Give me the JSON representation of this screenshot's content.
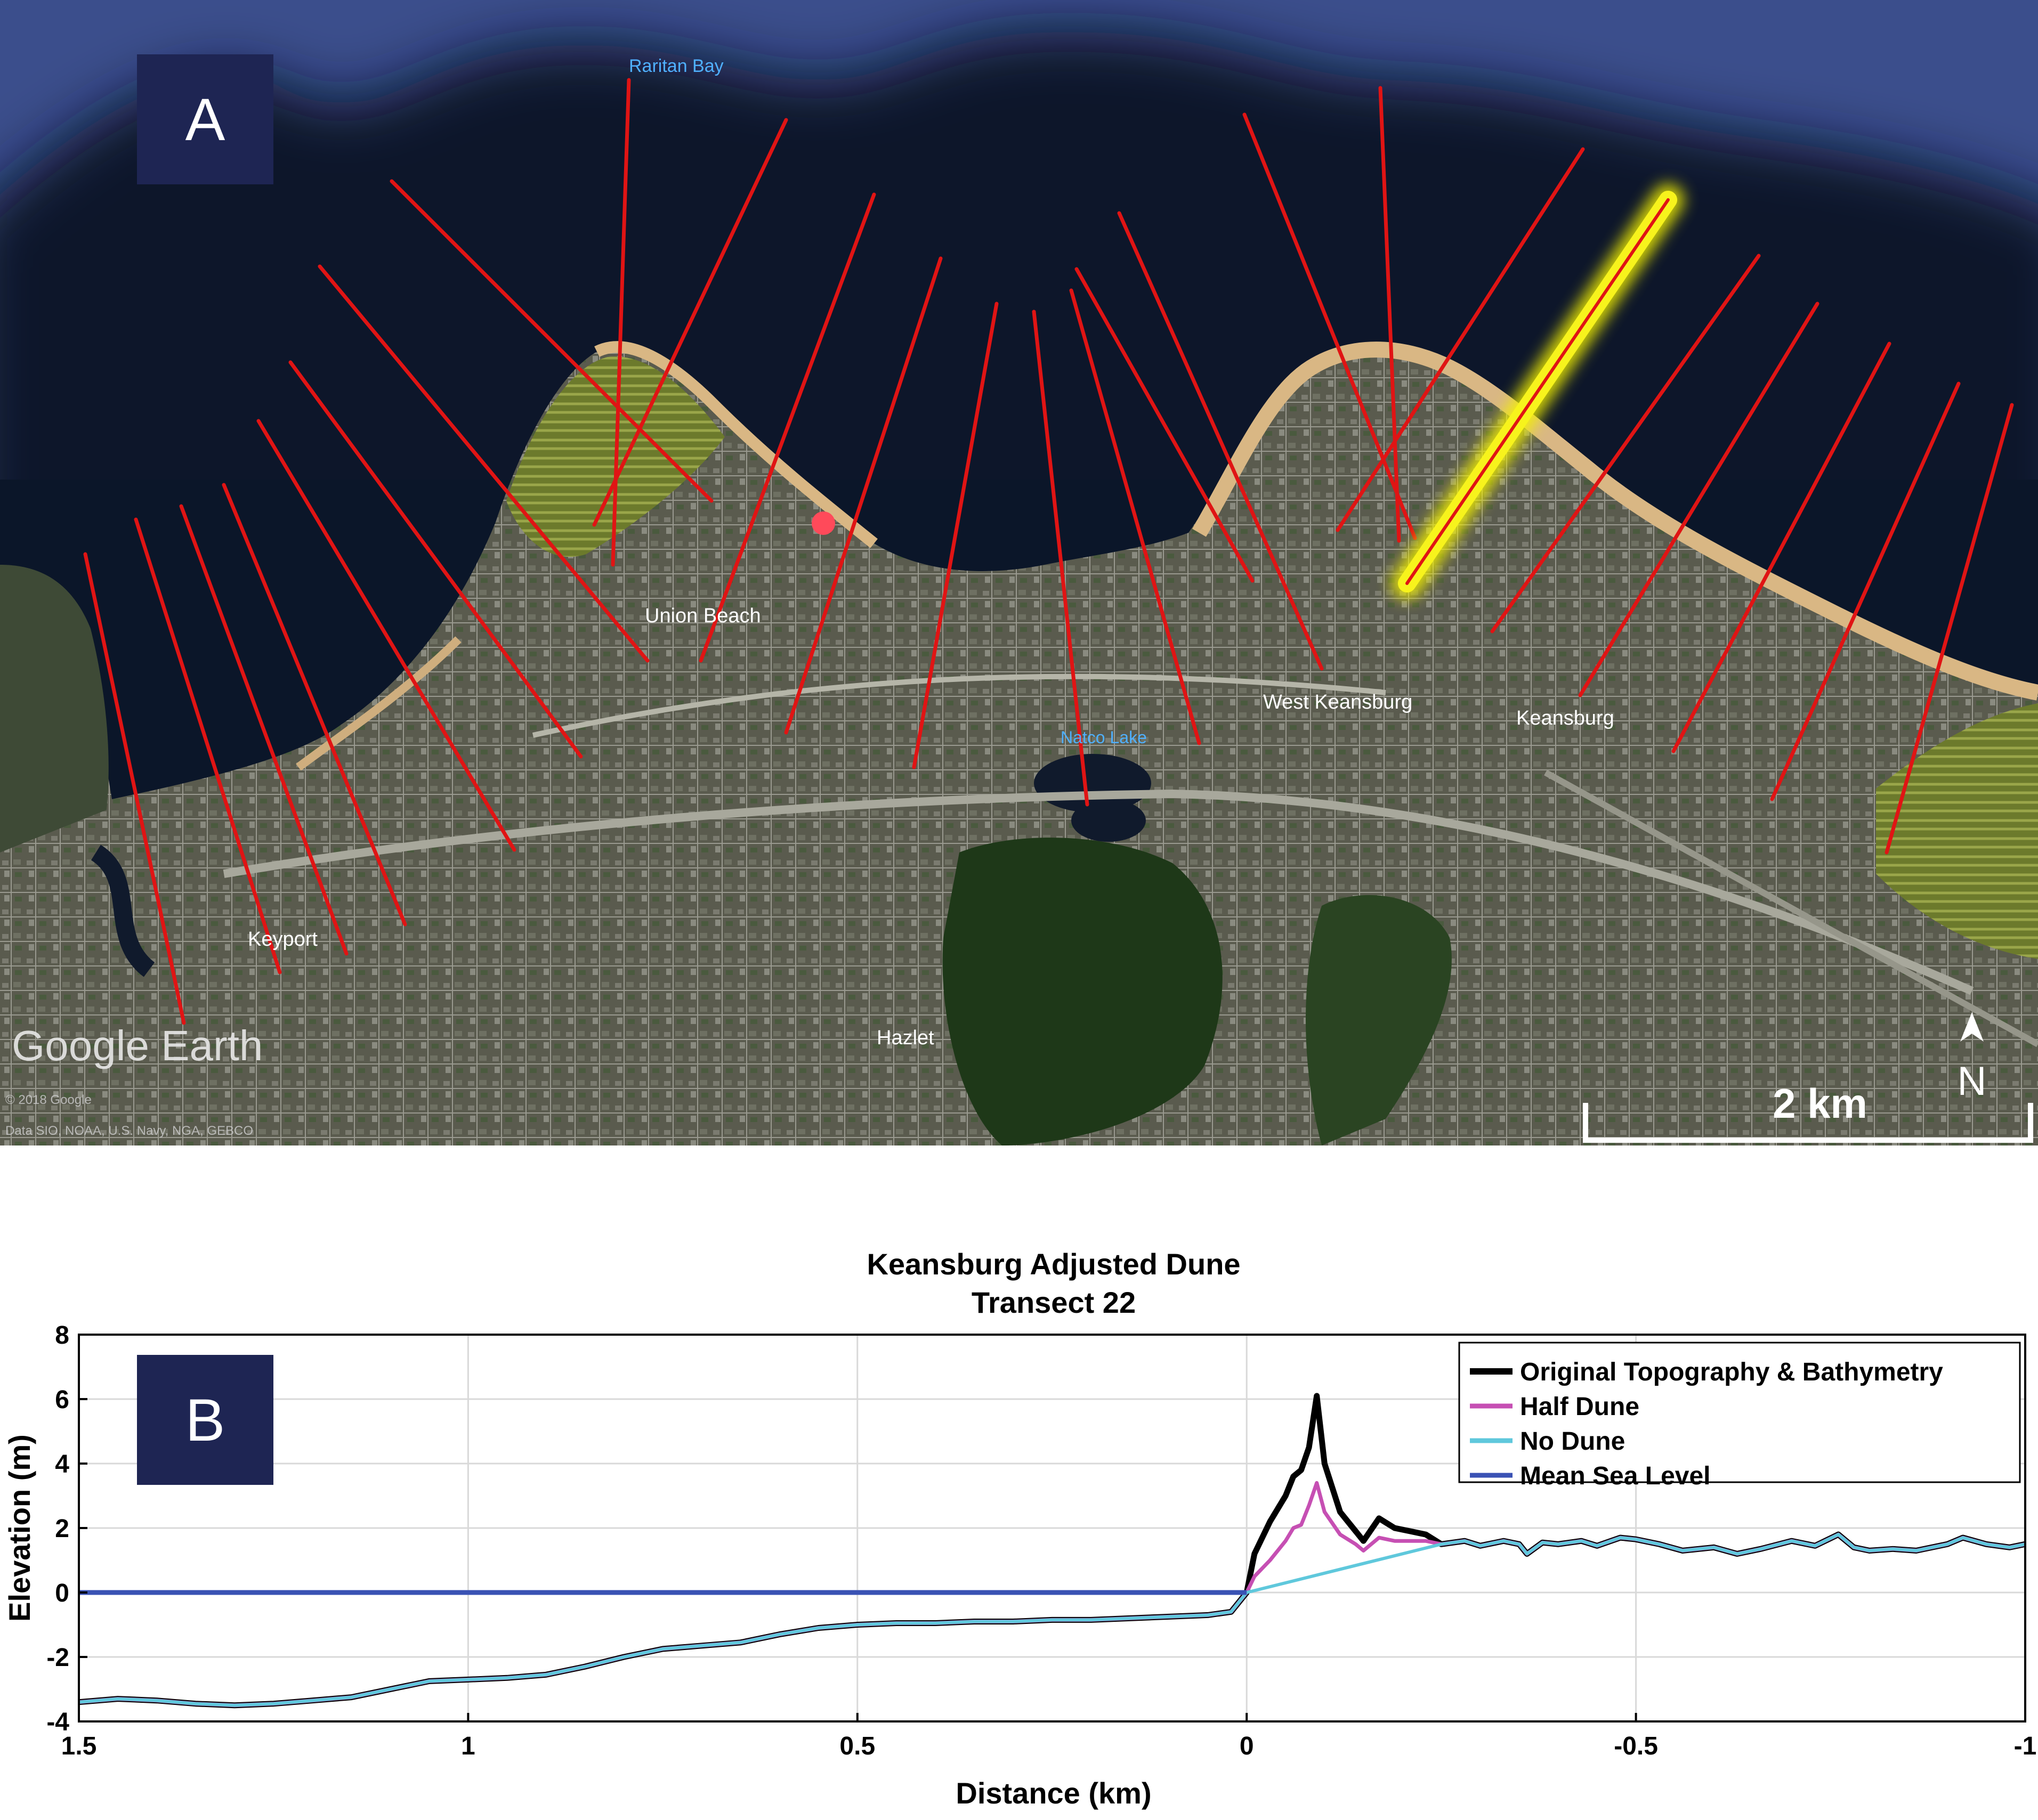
{
  "panel_a": {
    "label": "A",
    "place_labels": {
      "raritan_bay": "Raritan Bay",
      "union_beach": "Union Beach",
      "west_keansburg": "West Keansburg",
      "keansburg": "Keansburg",
      "natco_lake": "Natco Lake",
      "keyport": "Keyport",
      "hazlet": "Hazlet"
    },
    "google_earth": "Google Earth",
    "imagery_credit_1": "© 2018 Google",
    "imagery_credit_2": "Data SIO, NOAA, U.S. Navy, NGA, GEBCO",
    "scale_label": "2 km",
    "north_label": "N",
    "transect_count": 26,
    "highlighted_transect": 22,
    "colors": {
      "transect": "#e01414",
      "highlight": "#f4f200",
      "water": "#0b1629",
      "shore": "#d9b784"
    }
  },
  "panel_b": {
    "label": "B"
  },
  "chart_data": {
    "type": "line",
    "title": "Keansburg Adjusted Dune",
    "subtitle": "Transect 22",
    "xlabel": "Distance (km)",
    "ylabel": "Elevation (m)",
    "xlim": [
      1.5,
      -1
    ],
    "ylim": [
      -4,
      8
    ],
    "x_reversed": true,
    "xticks": [
      1.5,
      1,
      0.5,
      0,
      -0.5,
      -1
    ],
    "xtick_labels": [
      "1.5",
      "1",
      "0.5",
      "0",
      "-0.5",
      "-1"
    ],
    "yticks": [
      8,
      6,
      4,
      2,
      0,
      -2,
      -4
    ],
    "ytick_labels": [
      "8",
      "6",
      "4",
      "2",
      "0",
      "-2",
      "-4"
    ],
    "grid": true,
    "legend_position": "top-right",
    "series": [
      {
        "name": "Original Topography & Bathymetry",
        "color": "#000000",
        "x": [
          1.5,
          1.45,
          1.4,
          1.35,
          1.3,
          1.25,
          1.2,
          1.15,
          1.1,
          1.05,
          1.0,
          0.95,
          0.9,
          0.85,
          0.8,
          0.75,
          0.7,
          0.65,
          0.6,
          0.55,
          0.5,
          0.45,
          0.4,
          0.35,
          0.3,
          0.25,
          0.2,
          0.15,
          0.1,
          0.05,
          0.02,
          0.0,
          -0.01,
          -0.03,
          -0.05,
          -0.06,
          -0.07,
          -0.08,
          -0.09,
          -0.1,
          -0.12,
          -0.14,
          -0.15,
          -0.17,
          -0.19,
          -0.21,
          -0.23,
          -0.25,
          -0.28,
          -0.3,
          -0.33,
          -0.35,
          -0.36,
          -0.38,
          -0.4,
          -0.43,
          -0.45,
          -0.48,
          -0.5,
          -0.53,
          -0.56,
          -0.6,
          -0.63,
          -0.66,
          -0.7,
          -0.73,
          -0.76,
          -0.78,
          -0.8,
          -0.83,
          -0.86,
          -0.9,
          -0.92,
          -0.95,
          -0.98,
          -1.0
        ],
        "y": [
          -3.4,
          -3.3,
          -3.35,
          -3.45,
          -3.5,
          -3.45,
          -3.35,
          -3.25,
          -3.0,
          -2.75,
          -2.7,
          -2.65,
          -2.55,
          -2.3,
          -2.0,
          -1.75,
          -1.65,
          -1.55,
          -1.3,
          -1.1,
          -1.0,
          -0.95,
          -0.95,
          -0.9,
          -0.9,
          -0.85,
          -0.85,
          -0.8,
          -0.75,
          -0.7,
          -0.6,
          0.0,
          1.2,
          2.2,
          3.0,
          3.6,
          3.8,
          4.5,
          6.1,
          4.0,
          2.5,
          1.9,
          1.6,
          2.3,
          2.0,
          1.9,
          1.8,
          1.5,
          1.6,
          1.45,
          1.6,
          1.5,
          1.2,
          1.55,
          1.5,
          1.6,
          1.45,
          1.7,
          1.65,
          1.5,
          1.3,
          1.4,
          1.2,
          1.35,
          1.6,
          1.45,
          1.8,
          1.4,
          1.3,
          1.35,
          1.3,
          1.5,
          1.7,
          1.5,
          1.4,
          1.5
        ]
      },
      {
        "name": "Half Dune",
        "color": "#c64fb3",
        "x": [
          1.5,
          1.45,
          1.4,
          1.35,
          1.3,
          1.25,
          1.2,
          1.15,
          1.1,
          1.05,
          1.0,
          0.95,
          0.9,
          0.85,
          0.8,
          0.75,
          0.7,
          0.65,
          0.6,
          0.55,
          0.5,
          0.45,
          0.4,
          0.35,
          0.3,
          0.25,
          0.2,
          0.15,
          0.1,
          0.05,
          0.02,
          0.0,
          -0.01,
          -0.03,
          -0.05,
          -0.06,
          -0.07,
          -0.08,
          -0.09,
          -0.1,
          -0.12,
          -0.14,
          -0.15,
          -0.17,
          -0.19,
          -0.21,
          -0.23,
          -0.25,
          -0.28,
          -0.3,
          -0.33,
          -0.35,
          -0.36,
          -0.38,
          -0.4,
          -0.43,
          -0.45,
          -0.48,
          -0.5,
          -0.53,
          -0.56,
          -0.6,
          -0.63,
          -0.66,
          -0.7,
          -0.73,
          -0.76,
          -0.78,
          -0.8,
          -0.83,
          -0.86,
          -0.9,
          -0.92,
          -0.95,
          -0.98,
          -1.0
        ],
        "y": [
          -3.4,
          -3.3,
          -3.35,
          -3.45,
          -3.5,
          -3.45,
          -3.35,
          -3.25,
          -3.0,
          -2.75,
          -2.7,
          -2.65,
          -2.55,
          -2.3,
          -2.0,
          -1.75,
          -1.65,
          -1.55,
          -1.3,
          -1.1,
          -1.0,
          -0.95,
          -0.95,
          -0.9,
          -0.9,
          -0.85,
          -0.85,
          -0.8,
          -0.75,
          -0.7,
          -0.6,
          0.0,
          0.5,
          1.0,
          1.6,
          2.0,
          2.1,
          2.7,
          3.4,
          2.5,
          1.8,
          1.5,
          1.3,
          1.7,
          1.6,
          1.6,
          1.6,
          1.5,
          1.6,
          1.45,
          1.6,
          1.5,
          1.2,
          1.55,
          1.5,
          1.6,
          1.45,
          1.7,
          1.65,
          1.5,
          1.3,
          1.4,
          1.2,
          1.35,
          1.6,
          1.45,
          1.8,
          1.4,
          1.3,
          1.35,
          1.3,
          1.5,
          1.7,
          1.5,
          1.4,
          1.5
        ]
      },
      {
        "name": "No Dune",
        "color": "#5fc8dc",
        "x": [
          1.5,
          1.45,
          1.4,
          1.35,
          1.3,
          1.25,
          1.2,
          1.15,
          1.1,
          1.05,
          1.0,
          0.95,
          0.9,
          0.85,
          0.8,
          0.75,
          0.7,
          0.65,
          0.6,
          0.55,
          0.5,
          0.45,
          0.4,
          0.35,
          0.3,
          0.25,
          0.2,
          0.15,
          0.1,
          0.05,
          0.02,
          0.0,
          -0.25,
          -0.28,
          -0.3,
          -0.33,
          -0.35,
          -0.36,
          -0.38,
          -0.4,
          -0.43,
          -0.45,
          -0.48,
          -0.5,
          -0.53,
          -0.56,
          -0.6,
          -0.63,
          -0.66,
          -0.7,
          -0.73,
          -0.76,
          -0.78,
          -0.8,
          -0.83,
          -0.86,
          -0.9,
          -0.92,
          -0.95,
          -0.98,
          -1.0
        ],
        "y": [
          -3.4,
          -3.3,
          -3.35,
          -3.45,
          -3.5,
          -3.45,
          -3.35,
          -3.25,
          -3.0,
          -2.75,
          -2.7,
          -2.65,
          -2.55,
          -2.3,
          -2.0,
          -1.75,
          -1.65,
          -1.55,
          -1.3,
          -1.1,
          -1.0,
          -0.95,
          -0.95,
          -0.9,
          -0.9,
          -0.85,
          -0.85,
          -0.8,
          -0.75,
          -0.7,
          -0.6,
          0.0,
          1.5,
          1.6,
          1.45,
          1.6,
          1.5,
          1.2,
          1.55,
          1.5,
          1.6,
          1.45,
          1.7,
          1.65,
          1.5,
          1.3,
          1.4,
          1.2,
          1.35,
          1.6,
          1.45,
          1.8,
          1.4,
          1.3,
          1.35,
          1.3,
          1.5,
          1.7,
          1.5,
          1.4,
          1.5
        ]
      },
      {
        "name": "Mean Sea Level",
        "color": "#3a52b4",
        "x": [
          1.5,
          0.0
        ],
        "y": [
          0,
          0
        ]
      }
    ]
  }
}
